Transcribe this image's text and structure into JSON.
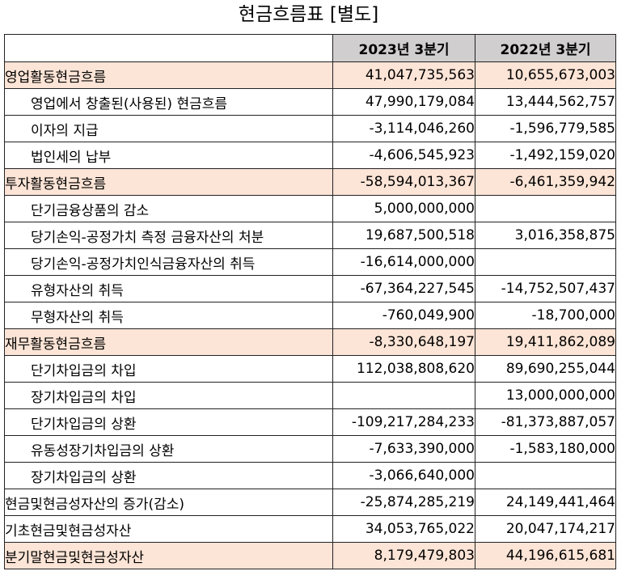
{
  "title": "현금흐름표 [별도]",
  "columns": [
    "2023년 3분기",
    "2022년 3분기"
  ],
  "colors": {
    "header_bg": "#d0cece",
    "highlight_bg": "#fce4d6"
  },
  "rows": [
    {
      "label": "영업활동현금흐름",
      "v1": "41,047,735,563",
      "v2": "10,655,673,003"
    },
    {
      "label": "영업에서 창출된(사용된) 현금흐름",
      "v1": "47,990,179,084",
      "v2": "13,444,562,757"
    },
    {
      "label": "이자의 지급",
      "v1": "-3,114,046,260",
      "v2": "-1,596,779,585"
    },
    {
      "label": "법인세의 납부",
      "v1": "-4,606,545,923",
      "v2": "-1,492,159,020"
    },
    {
      "label": "투자활동현금흐름",
      "v1": "-58,594,013,367",
      "v2": "-6,461,359,942"
    },
    {
      "label": "단기금융상품의 감소",
      "v1": "5,000,000,000",
      "v2": ""
    },
    {
      "label": "당기손익-공정가치 측정 금융자산의 처분",
      "v1": "19,687,500,518",
      "v2": "3,016,358,875"
    },
    {
      "label": "당기손익-공정가치인식금융자산의 취득",
      "v1": "-16,614,000,000",
      "v2": ""
    },
    {
      "label": "유형자산의 취득",
      "v1": "-67,364,227,545",
      "v2": "-14,752,507,437"
    },
    {
      "label": "무형자산의 취득",
      "v1": "-760,049,900",
      "v2": "-18,700,000"
    },
    {
      "label": "재무활동현금흐름",
      "v1": "-8,330,648,197",
      "v2": "19,411,862,089"
    },
    {
      "label": "단기차입금의 차입",
      "v1": "112,038,808,620",
      "v2": "89,690,255,044"
    },
    {
      "label": "장기차입금의 차입",
      "v1": "",
      "v2": "13,000,000,000"
    },
    {
      "label": "단기차입금의 상환",
      "v1": "-109,217,284,233",
      "v2": "-81,373,887,057"
    },
    {
      "label": "유동성장기차입금의 상환",
      "v1": "-7,633,390,000",
      "v2": "-1,583,180,000"
    },
    {
      "label": "장기차입금의 상환",
      "v1": "-3,066,640,000",
      "v2": ""
    },
    {
      "label": "현금및현금성자산의 증가(감소)",
      "v1": "-25,874,285,219",
      "v2": "24,149,441,464"
    },
    {
      "label": "기초현금및현금성자산",
      "v1": "34,053,765,022",
      "v2": "20,047,174,217"
    },
    {
      "label": "분기말현금및현금성자산",
      "v1": "8,179,479,803",
      "v2": "44,196,615,681"
    }
  ]
}
